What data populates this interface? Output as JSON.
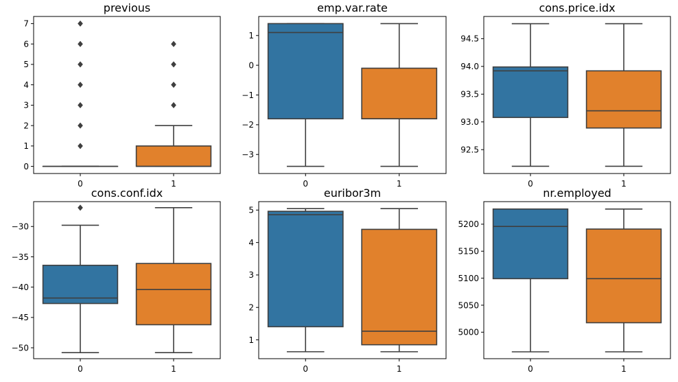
{
  "chart_data": [
    {
      "type": "box",
      "title": "previous",
      "xlabel": "",
      "ylabel": "",
      "categories": [
        "0",
        "1"
      ],
      "ylim": [
        -0.35,
        7.35
      ],
      "yticks": [
        0,
        1,
        2,
        3,
        4,
        5,
        6,
        7
      ],
      "yticklabels": [
        "0",
        "1",
        "2",
        "3",
        "4",
        "5",
        "6",
        "7"
      ],
      "boxes": [
        {
          "category": "0",
          "whisker_low": 0,
          "q1": 0,
          "median": 0,
          "q3": 0,
          "whisker_high": 0,
          "outliers": [
            1,
            2,
            3,
            4,
            5,
            6,
            7
          ]
        },
        {
          "category": "1",
          "whisker_low": 0,
          "q1": 0,
          "median": 0,
          "q3": 1,
          "whisker_high": 2,
          "outliers": [
            3,
            4,
            5,
            6
          ]
        }
      ]
    },
    {
      "type": "box",
      "title": "emp.var.rate",
      "xlabel": "",
      "ylabel": "",
      "categories": [
        "0",
        "1"
      ],
      "ylim": [
        -3.64,
        1.64
      ],
      "yticks": [
        -3,
        -2,
        -1,
        0,
        1
      ],
      "yticklabels": [
        "−3",
        "−2",
        "−1",
        "0",
        "1"
      ],
      "boxes": [
        {
          "category": "0",
          "whisker_low": -3.4,
          "q1": -1.8,
          "median": 1.1,
          "q3": 1.4,
          "whisker_high": 1.4,
          "outliers": []
        },
        {
          "category": "1",
          "whisker_low": -3.4,
          "q1": -1.8,
          "median": -1.8,
          "q3": -0.1,
          "whisker_high": 1.4,
          "outliers": []
        }
      ]
    },
    {
      "type": "box",
      "title": "cons.price.idx",
      "xlabel": "",
      "ylabel": "",
      "categories": [
        "0",
        "1"
      ],
      "ylim": [
        92.07,
        94.9
      ],
      "yticks": [
        92.5,
        93.0,
        93.5,
        94.0,
        94.5
      ],
      "yticklabels": [
        "92.5",
        "93.0",
        "93.5",
        "94.0",
        "94.5"
      ],
      "boxes": [
        {
          "category": "0",
          "whisker_low": 92.2,
          "q1": 93.08,
          "median": 93.92,
          "q3": 93.99,
          "whisker_high": 94.77,
          "outliers": []
        },
        {
          "category": "1",
          "whisker_low": 92.2,
          "q1": 92.89,
          "median": 93.2,
          "q3": 93.92,
          "whisker_high": 94.77,
          "outliers": []
        }
      ]
    },
    {
      "type": "box",
      "title": "cons.conf.idx",
      "xlabel": "",
      "ylabel": "",
      "categories": [
        "0",
        "1"
      ],
      "ylim": [
        -51.8,
        -25.9
      ],
      "yticks": [
        -50,
        -45,
        -40,
        -35,
        -30
      ],
      "yticklabels": [
        "−50",
        "−45",
        "−40",
        "−35",
        "−30"
      ],
      "boxes": [
        {
          "category": "0",
          "whisker_low": -50.8,
          "q1": -42.7,
          "median": -41.8,
          "q3": -36.4,
          "whisker_high": -29.8,
          "outliers": [
            -26.9
          ]
        },
        {
          "category": "1",
          "whisker_low": -50.8,
          "q1": -46.2,
          "median": -40.4,
          "q3": -36.1,
          "whisker_high": -26.9,
          "outliers": []
        }
      ]
    },
    {
      "type": "box",
      "title": "euribor3m",
      "xlabel": "",
      "ylabel": "",
      "categories": [
        "0",
        "1"
      ],
      "ylim": [
        0.42,
        5.26
      ],
      "yticks": [
        1,
        2,
        3,
        4,
        5
      ],
      "yticklabels": [
        "1",
        "2",
        "3",
        "4",
        "5"
      ],
      "boxes": [
        {
          "category": "0",
          "whisker_low": 0.634,
          "q1": 1.405,
          "median": 4.857,
          "q3": 4.962,
          "whisker_high": 5.045,
          "outliers": []
        },
        {
          "category": "1",
          "whisker_low": 0.634,
          "q1": 0.849,
          "median": 1.266,
          "q3": 4.406,
          "whisker_high": 5.045,
          "outliers": []
        }
      ]
    },
    {
      "type": "box",
      "title": "nr.employed",
      "xlabel": "",
      "ylabel": "",
      "categories": [
        "0",
        "1"
      ],
      "ylim": [
        4950.9,
        5241.8
      ],
      "yticks": [
        5000,
        5050,
        5100,
        5150,
        5200
      ],
      "yticklabels": [
        "5000",
        "5050",
        "5100",
        "5150",
        "5200"
      ],
      "boxes": [
        {
          "category": "0",
          "whisker_low": 4963.6,
          "q1": 5099.1,
          "median": 5195.8,
          "q3": 5228.1,
          "whisker_high": 5228.1,
          "outliers": []
        },
        {
          "category": "1",
          "whisker_low": 4963.6,
          "q1": 5017.5,
          "median": 5099.1,
          "q3": 5191.0,
          "whisker_high": 5228.1,
          "outliers": []
        }
      ]
    }
  ],
  "colors": {
    "class_0": "#3274a1",
    "class_1": "#e1812c",
    "line": "#3f3f3f",
    "axis": "#000000"
  }
}
